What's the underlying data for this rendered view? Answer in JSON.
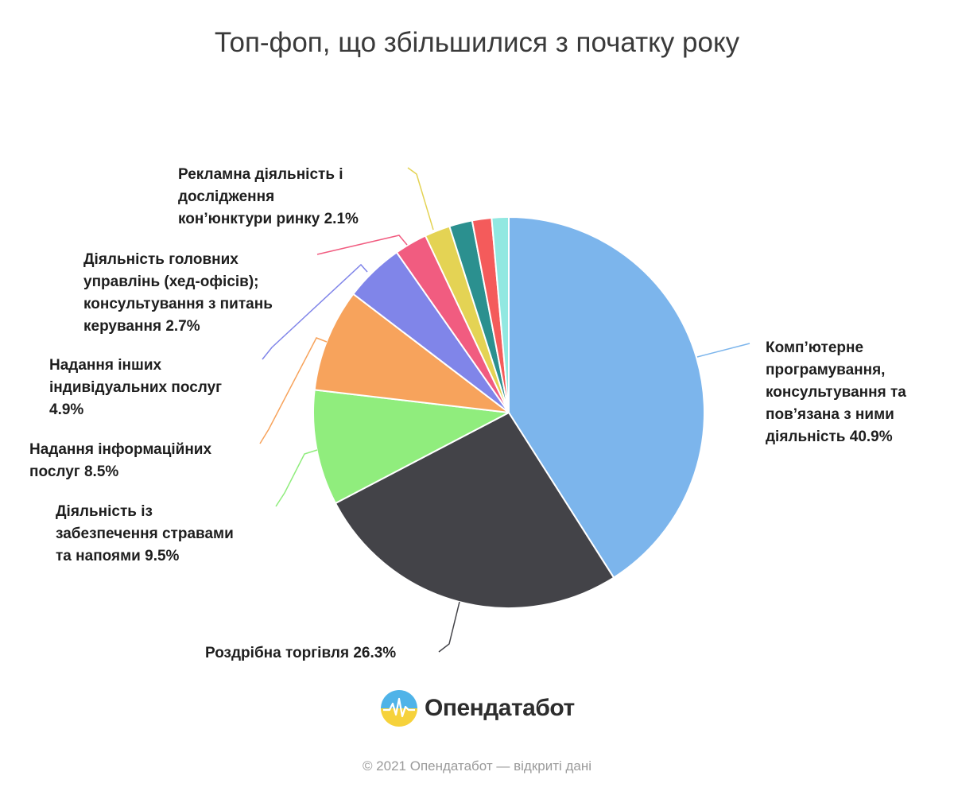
{
  "chart_data": {
    "type": "pie",
    "title": "Топ-фоп, що збільшилися з початку року",
    "slices": [
      {
        "label_lines": [
          "Комп’ютерне",
          "програмування,",
          "консультування та",
          "пов’язана з ними",
          "діяльність 40.9%"
        ],
        "value": 40.9,
        "color": "#7cb5ec"
      },
      {
        "label_lines": [
          "Роздрібна торгівля 26.3%"
        ],
        "value": 26.3,
        "color": "#434348"
      },
      {
        "label_lines": [
          "Діяльність із",
          "забезпечення стравами",
          "та напоями 9.5%"
        ],
        "value": 9.5,
        "color": "#90ed7d"
      },
      {
        "label_lines": [
          "Надання інформаційних",
          "послуг 8.5%"
        ],
        "value": 8.5,
        "color": "#f7a35c"
      },
      {
        "label_lines": [
          "Надання інших",
          "індивідуальних послуг",
          "4.9%"
        ],
        "value": 4.9,
        "color": "#8085e9"
      },
      {
        "label_lines": [
          "Діяльність головних",
          "управлінь (хед-офісів);",
          "консультування з питань",
          "керування 2.7%"
        ],
        "value": 2.7,
        "color": "#f15c80"
      },
      {
        "label_lines": [
          "Рекламна діяльність і",
          "дослідження",
          "кон’юнктури ринку 2.1%"
        ],
        "value": 2.1,
        "color": "#e4d354"
      },
      {
        "label_lines": [],
        "value": 1.9,
        "color": "#2b908f"
      },
      {
        "label_lines": [],
        "value": 1.6,
        "color": "#f45b5b"
      },
      {
        "label_lines": [],
        "value": 1.4,
        "color": "#91e8e1"
      }
    ]
  },
  "logo": {
    "text": "Опендатабот",
    "icon": "opendatabot-logo-icon"
  },
  "footer": {
    "text": "© 2021 Опендатабот — відкриті дані"
  }
}
